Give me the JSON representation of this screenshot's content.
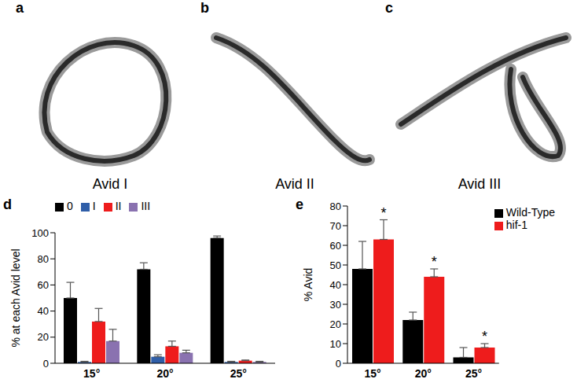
{
  "panels": [
    {
      "label": "a",
      "caption": "Avid I"
    },
    {
      "label": "b",
      "caption": "Avid II"
    },
    {
      "label": "c",
      "caption": "Avid III"
    }
  ],
  "chart_data": [
    {
      "panel_label": "d",
      "type": "bar",
      "y_label": "% at each Avid level",
      "categories": [
        "15°",
        "20°",
        "25°"
      ],
      "series": [
        {
          "name": "0",
          "color": "#000000",
          "values": [
            50,
            72,
            96
          ],
          "errors": [
            12,
            5,
            1.5
          ]
        },
        {
          "name": "I",
          "color": "#2f5ea8",
          "values": [
            1,
            5,
            1
          ],
          "errors": [
            0.5,
            1.5,
            0.5
          ]
        },
        {
          "name": "II",
          "color": "#ee1c1c",
          "values": [
            32,
            13,
            2
          ],
          "errors": [
            10,
            4,
            0.5
          ]
        },
        {
          "name": "III",
          "color": "#8a72b0",
          "values": [
            17,
            8,
            1
          ],
          "errors": [
            9,
            2,
            0.5
          ]
        }
      ],
      "ylim": [
        0,
        100
      ],
      "yticks": [
        0,
        20,
        40,
        60,
        80,
        100
      ],
      "grid": false,
      "legend": "top-left"
    },
    {
      "panel_label": "e",
      "type": "bar",
      "y_label": "% Avid",
      "categories": [
        "15°",
        "20°",
        "25°"
      ],
      "series": [
        {
          "name": "Wild-Type",
          "color": "#000000",
          "values": [
            48,
            22,
            3
          ],
          "errors": [
            14,
            4,
            5
          ]
        },
        {
          "name": "hif-1",
          "color": "#ee1c1c",
          "values": [
            63,
            44,
            8
          ],
          "errors": [
            10,
            4,
            2
          ],
          "annotations": [
            "*",
            "*",
            "*"
          ]
        }
      ],
      "ylim": [
        0,
        80
      ],
      "yticks": [
        0,
        10,
        20,
        30,
        40,
        50,
        60,
        70,
        80
      ],
      "grid": false,
      "legend": "top-right"
    }
  ]
}
